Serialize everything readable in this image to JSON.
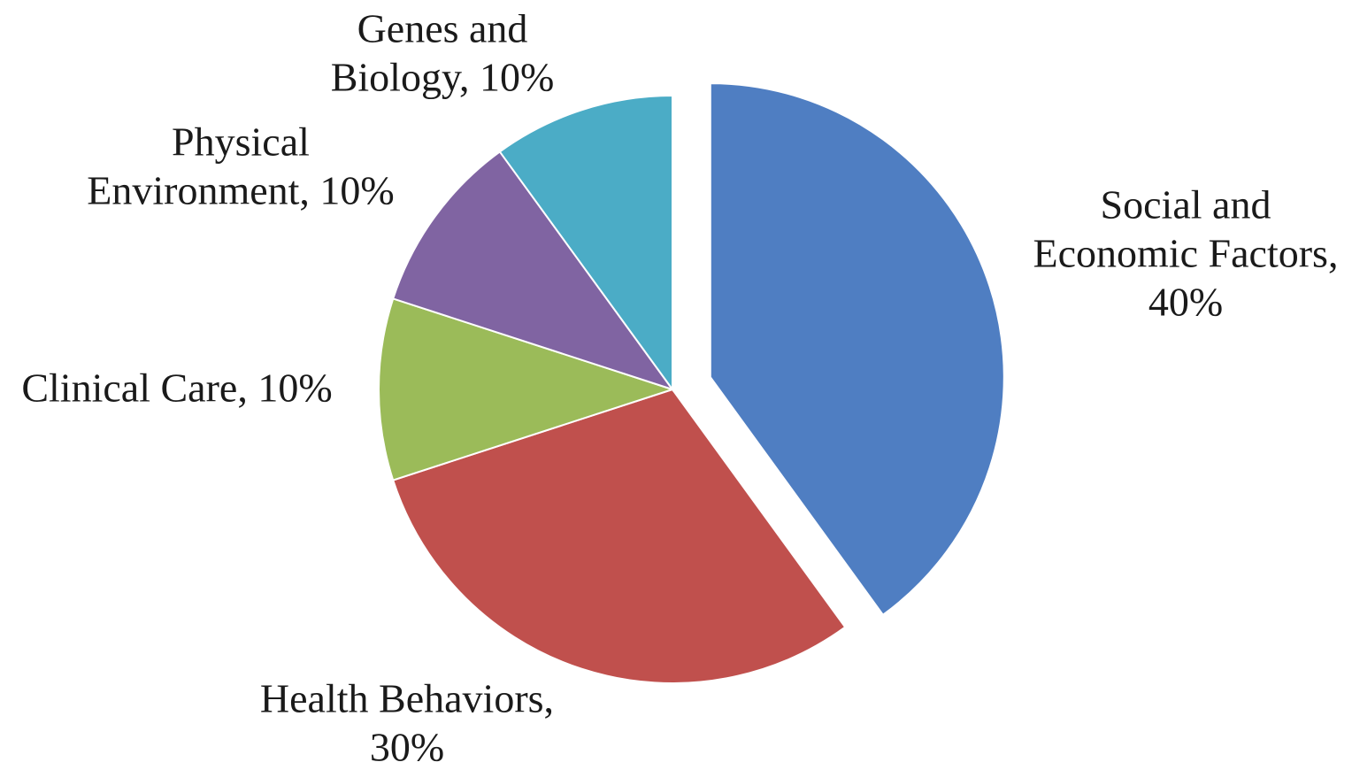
{
  "chart_data": {
    "type": "pie",
    "start_angle_deg": 0,
    "direction": "clockwise",
    "exploded_slice": "Social and Economic Factors",
    "slices": [
      {
        "name": "Social and Economic Factors",
        "value": 40,
        "percent_label": "40%",
        "label_lines": [
          "Social and",
          "Economic Factors,",
          "40%"
        ],
        "color": "#4F7EC2"
      },
      {
        "name": "Health Behaviors",
        "value": 30,
        "percent_label": "30%",
        "label_lines": [
          "Health Behaviors,",
          "30%"
        ],
        "color": "#C0504D"
      },
      {
        "name": "Clinical Care",
        "value": 10,
        "percent_label": "10%",
        "label_lines": [
          "Clinical Care, 10%"
        ],
        "color": "#9BBB59"
      },
      {
        "name": "Physical Environment",
        "value": 10,
        "percent_label": "10%",
        "label_lines": [
          "Physical",
          "Environment, 10%"
        ],
        "color": "#8064A2"
      },
      {
        "name": "Genes and Biology",
        "value": 10,
        "percent_label": "10%",
        "label_lines": [
          "Genes and",
          "Biology, 10%"
        ],
        "color": "#4BACC6"
      }
    ],
    "legend": "none"
  }
}
